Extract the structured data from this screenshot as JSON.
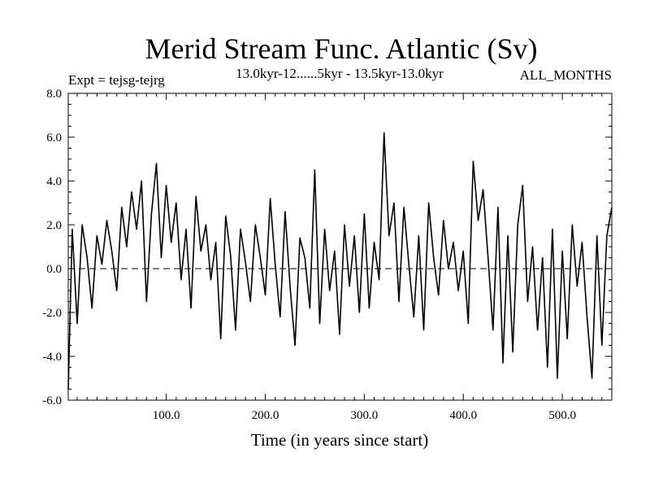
{
  "chart_data": {
    "type": "line",
    "title": "Merid Stream Func. Atlantic (Sv)",
    "subtitle_left": "Expt = tejsg-tejrg",
    "subtitle_center": "13.0kyr-12......5kyr - 13.5kyr-13.0kyr",
    "subtitle_right": "ALL_MONTHS",
    "xlabel": "Time (in years since start)",
    "ylabel": "",
    "xlim": [
      1,
      550
    ],
    "ylim": [
      -6.0,
      8.0
    ],
    "xticks": [
      100,
      200,
      300,
      400,
      500
    ],
    "xtick_labels": [
      "100.0",
      "200.0",
      "300.0",
      "400.0",
      "500.0"
    ],
    "yticks": [
      -6,
      -4,
      -2,
      0,
      2,
      4,
      6,
      8
    ],
    "ytick_labels": [
      "-6.0",
      "-4.0",
      "-2.0",
      "0.0",
      "2.0",
      "4.0",
      "6.0",
      "8.0"
    ],
    "reference_line": 0.0,
    "series": [
      {
        "name": "Merid Stream Func. Atlantic",
        "x": [
          1,
          5,
          10,
          15,
          20,
          25,
          30,
          35,
          40,
          45,
          50,
          55,
          60,
          65,
          70,
          75,
          80,
          85,
          90,
          95,
          100,
          105,
          110,
          115,
          120,
          125,
          130,
          135,
          140,
          145,
          150,
          155,
          160,
          165,
          170,
          175,
          180,
          185,
          190,
          195,
          200,
          205,
          210,
          215,
          220,
          225,
          230,
          235,
          240,
          245,
          250,
          255,
          260,
          265,
          270,
          275,
          280,
          285,
          290,
          295,
          300,
          305,
          310,
          315,
          320,
          325,
          330,
          335,
          340,
          345,
          350,
          355,
          360,
          365,
          370,
          375,
          380,
          385,
          390,
          395,
          400,
          405,
          410,
          415,
          420,
          425,
          430,
          435,
          440,
          445,
          450,
          455,
          460,
          465,
          470,
          475,
          480,
          485,
          490,
          495,
          500,
          505,
          510,
          515,
          520,
          525,
          530,
          535,
          540,
          545,
          550
        ],
        "values": [
          -5.5,
          1.8,
          -2.5,
          2.0,
          0.5,
          -1.8,
          1.5,
          0.2,
          2.2,
          0.8,
          -1.0,
          2.8,
          1.0,
          3.5,
          1.8,
          4.0,
          -1.5,
          2.5,
          4.8,
          0.5,
          3.8,
          1.2,
          3.0,
          -0.5,
          1.8,
          -1.8,
          3.3,
          0.8,
          2.0,
          -0.5,
          1.2,
          -3.2,
          2.4,
          0.6,
          -2.8,
          1.8,
          0.3,
          -1.5,
          2.0,
          0.5,
          -1.2,
          3.2,
          0.2,
          -2.2,
          2.6,
          -0.8,
          -3.5,
          1.4,
          0.5,
          -1.8,
          4.5,
          -2.5,
          1.8,
          -1.0,
          0.8,
          -3.0,
          2.0,
          -0.8,
          1.5,
          -2.0,
          2.5,
          -1.8,
          1.2,
          -0.5,
          6.2,
          1.5,
          3.0,
          -1.5,
          2.8,
          0.2,
          -2.2,
          1.5,
          -2.8,
          3.0,
          0.5,
          -1.2,
          2.2,
          0.0,
          1.2,
          -1.0,
          0.8,
          -2.5,
          4.9,
          2.2,
          3.6,
          0.5,
          -2.8,
          2.8,
          -4.3,
          1.5,
          -3.8,
          2.0,
          3.8,
          -1.5,
          1.0,
          -2.8,
          0.5,
          -4.5,
          1.8,
          -5.0,
          0.8,
          -3.2,
          2.0,
          -0.8,
          1.2,
          -2.2,
          -5.0,
          1.5,
          -3.5,
          1.5,
          2.8
        ]
      }
    ]
  }
}
